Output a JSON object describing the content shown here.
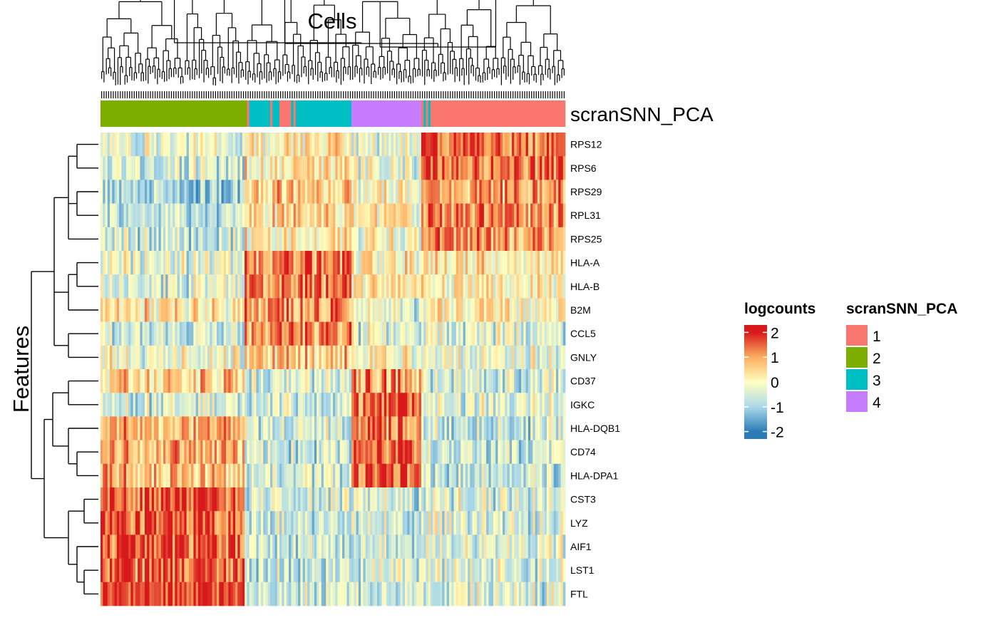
{
  "chart_data": {
    "type": "heatmap",
    "title": "Cells",
    "ylabel": "Features",
    "annotation_label": "scranSNN_PCA",
    "rows": [
      "RPS12",
      "RPS6",
      "RPS29",
      "RPL31",
      "RPS25",
      "HLA-A",
      "HLA-B",
      "B2M",
      "CCL5",
      "GNLY",
      "CD37",
      "IGKC",
      "HLA-DQB1",
      "CD74",
      "HLA-DPA1",
      "CST3",
      "LYZ",
      "AIF1",
      "LST1",
      "FTL"
    ],
    "n_columns": 200,
    "clusters": [
      {
        "label": "2",
        "start": 0,
        "end": 62,
        "profile": [
          -0.2,
          -0.5,
          -1.0,
          -0.6,
          -0.6,
          -0.3,
          -0.4,
          0.3,
          -0.5,
          -0.1,
          0.6,
          -0.5,
          0.9,
          0.9,
          0.8,
          1.7,
          1.7,
          1.6,
          1.6,
          1.8
        ]
      },
      {
        "label": "3",
        "start": 62,
        "end": 108,
        "profile": [
          0.2,
          0.3,
          0.6,
          0.5,
          0.2,
          1.3,
          1.3,
          1.1,
          1.2,
          0.6,
          -0.4,
          -0.5,
          -0.5,
          -0.6,
          -0.5,
          -0.6,
          -0.6,
          -0.6,
          -0.6,
          -0.6
        ]
      },
      {
        "label": "4",
        "start": 108,
        "end": 138,
        "profile": [
          -0.4,
          -0.3,
          0.0,
          0.0,
          -0.1,
          0.1,
          0.0,
          -0.5,
          -0.4,
          -0.1,
          1.0,
          1.2,
          1.4,
          1.5,
          1.4,
          -0.6,
          -0.6,
          -0.6,
          -0.5,
          -0.5
        ]
      },
      {
        "label": "1",
        "start": 138,
        "end": 200,
        "profile": [
          1.5,
          1.4,
          1.1,
          1.2,
          1.1,
          0.2,
          0.2,
          0.1,
          -0.4,
          -0.3,
          -0.6,
          -0.4,
          -0.6,
          -0.7,
          -0.7,
          -0.4,
          -0.4,
          -0.4,
          -0.4,
          -0.4
        ]
      }
    ],
    "annotation_bar": [
      {
        "label": "2",
        "start": 0,
        "end": 63
      },
      {
        "label": "1",
        "start": 63,
        "end": 64
      },
      {
        "label": "3",
        "start": 64,
        "end": 73
      },
      {
        "label": "1",
        "start": 73,
        "end": 74
      },
      {
        "label": "3",
        "start": 74,
        "end": 77
      },
      {
        "label": "1",
        "start": 77,
        "end": 82
      },
      {
        "label": "3",
        "start": 82,
        "end": 83
      },
      {
        "label": "1",
        "start": 83,
        "end": 84
      },
      {
        "label": "3",
        "start": 84,
        "end": 108
      },
      {
        "label": "4",
        "start": 108,
        "end": 138
      },
      {
        "label": "1",
        "start": 138,
        "end": 139
      },
      {
        "label": "3",
        "start": 139,
        "end": 140
      },
      {
        "label": "1",
        "start": 140,
        "end": 141
      },
      {
        "label": "3",
        "start": 141,
        "end": 142
      },
      {
        "label": "1",
        "start": 142,
        "end": 200
      }
    ],
    "color_scale": {
      "name": "logcounts",
      "range": [
        -2.3,
        2.3
      ],
      "ticks": [
        2,
        1,
        0,
        -1,
        -2
      ],
      "tick_labels": [
        "2",
        "1",
        "0",
        "-1",
        "-2"
      ],
      "colors": [
        {
          "value": -2,
          "color": "#2c7bb6"
        },
        {
          "value": -1,
          "color": "#abd9e9"
        },
        {
          "value": 0,
          "color": "#ffffbf"
        },
        {
          "value": 1,
          "color": "#fdae61"
        },
        {
          "value": 2,
          "color": "#d7191c"
        }
      ]
    },
    "annotation_legend": {
      "title": "scranSNN_PCA",
      "items": [
        {
          "label": "1",
          "color": "#F8766D"
        },
        {
          "label": "2",
          "color": "#7CAE00"
        },
        {
          "label": "3",
          "color": "#00BFC4"
        },
        {
          "label": "4",
          "color": "#C77CFF"
        }
      ]
    },
    "row_dendrogram_groups": [
      [
        0,
        1
      ],
      [
        2,
        3
      ],
      [
        0,
        1,
        2,
        3,
        4
      ],
      [
        5,
        6
      ],
      [
        5,
        6,
        7
      ],
      [
        8,
        9
      ],
      [
        0,
        1,
        2,
        3,
        4,
        5,
        6,
        7,
        8,
        9
      ],
      [
        13,
        14
      ],
      [
        12,
        13,
        14
      ],
      [
        10,
        11
      ],
      [
        10,
        11,
        12,
        13,
        14
      ],
      [
        15,
        16
      ],
      [
        18,
        19
      ],
      [
        17,
        18,
        19
      ],
      [
        15,
        16,
        17,
        18,
        19
      ],
      [
        10,
        11,
        12,
        13,
        14,
        15,
        16,
        17,
        18,
        19
      ],
      [
        0,
        1,
        2,
        3,
        4,
        5,
        6,
        7,
        8,
        9,
        10,
        11,
        12,
        13,
        14,
        15,
        16,
        17,
        18,
        19
      ]
    ]
  }
}
